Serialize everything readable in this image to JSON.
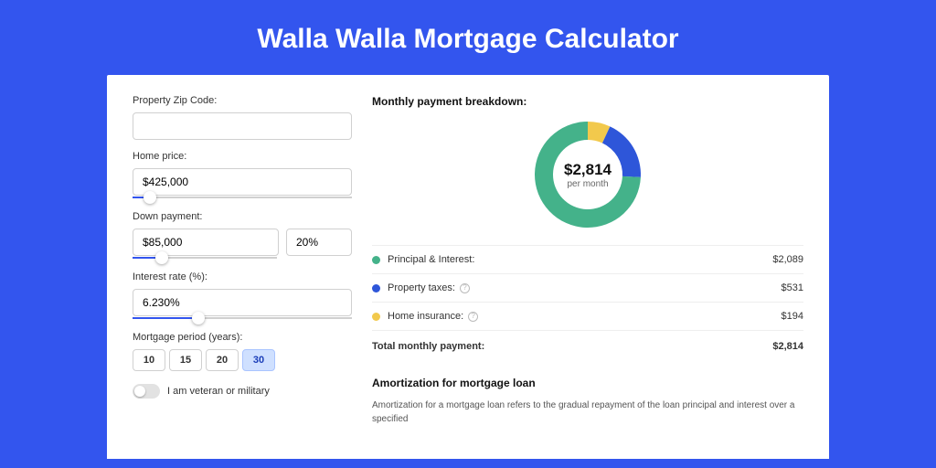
{
  "page": {
    "title": "Walla Walla Mortgage Calculator",
    "background_color": "#3355ee"
  },
  "form": {
    "zip": {
      "label": "Property Zip Code:",
      "value": ""
    },
    "home_price": {
      "label": "Home price:",
      "value": "$425,000",
      "slider_percent": 8
    },
    "down_payment": {
      "label": "Down payment:",
      "amount": "$85,000",
      "percent": "20%",
      "slider_percent": 20
    },
    "interest_rate": {
      "label": "Interest rate (%):",
      "value": "6.230%",
      "slider_percent": 30
    },
    "period": {
      "label": "Mortgage period (years):",
      "options": [
        "10",
        "15",
        "20",
        "30"
      ],
      "selected": "30"
    },
    "veteran": {
      "label": "I am veteran or military",
      "checked": false
    }
  },
  "breakdown": {
    "title": "Monthly payment breakdown:",
    "total_amount": "$2,814",
    "total_sub": "per month",
    "items": [
      {
        "label": "Principal & Interest:",
        "value": "$2,089",
        "color": "#44b28a",
        "info": false,
        "percent": 74.2
      },
      {
        "label": "Property taxes:",
        "value": "$531",
        "color": "#2e56d9",
        "info": true,
        "percent": 18.9
      },
      {
        "label": "Home insurance:",
        "value": "$194",
        "color": "#f2c94c",
        "info": true,
        "percent": 6.9
      }
    ],
    "total_row": {
      "label": "Total monthly payment:",
      "value": "$2,814"
    },
    "donut_colors": {
      "track_bg": "#fff"
    }
  },
  "amortization": {
    "title": "Amortization for mortgage loan",
    "text": "Amortization for a mortgage loan refers to the gradual repayment of the loan principal and interest over a specified"
  }
}
